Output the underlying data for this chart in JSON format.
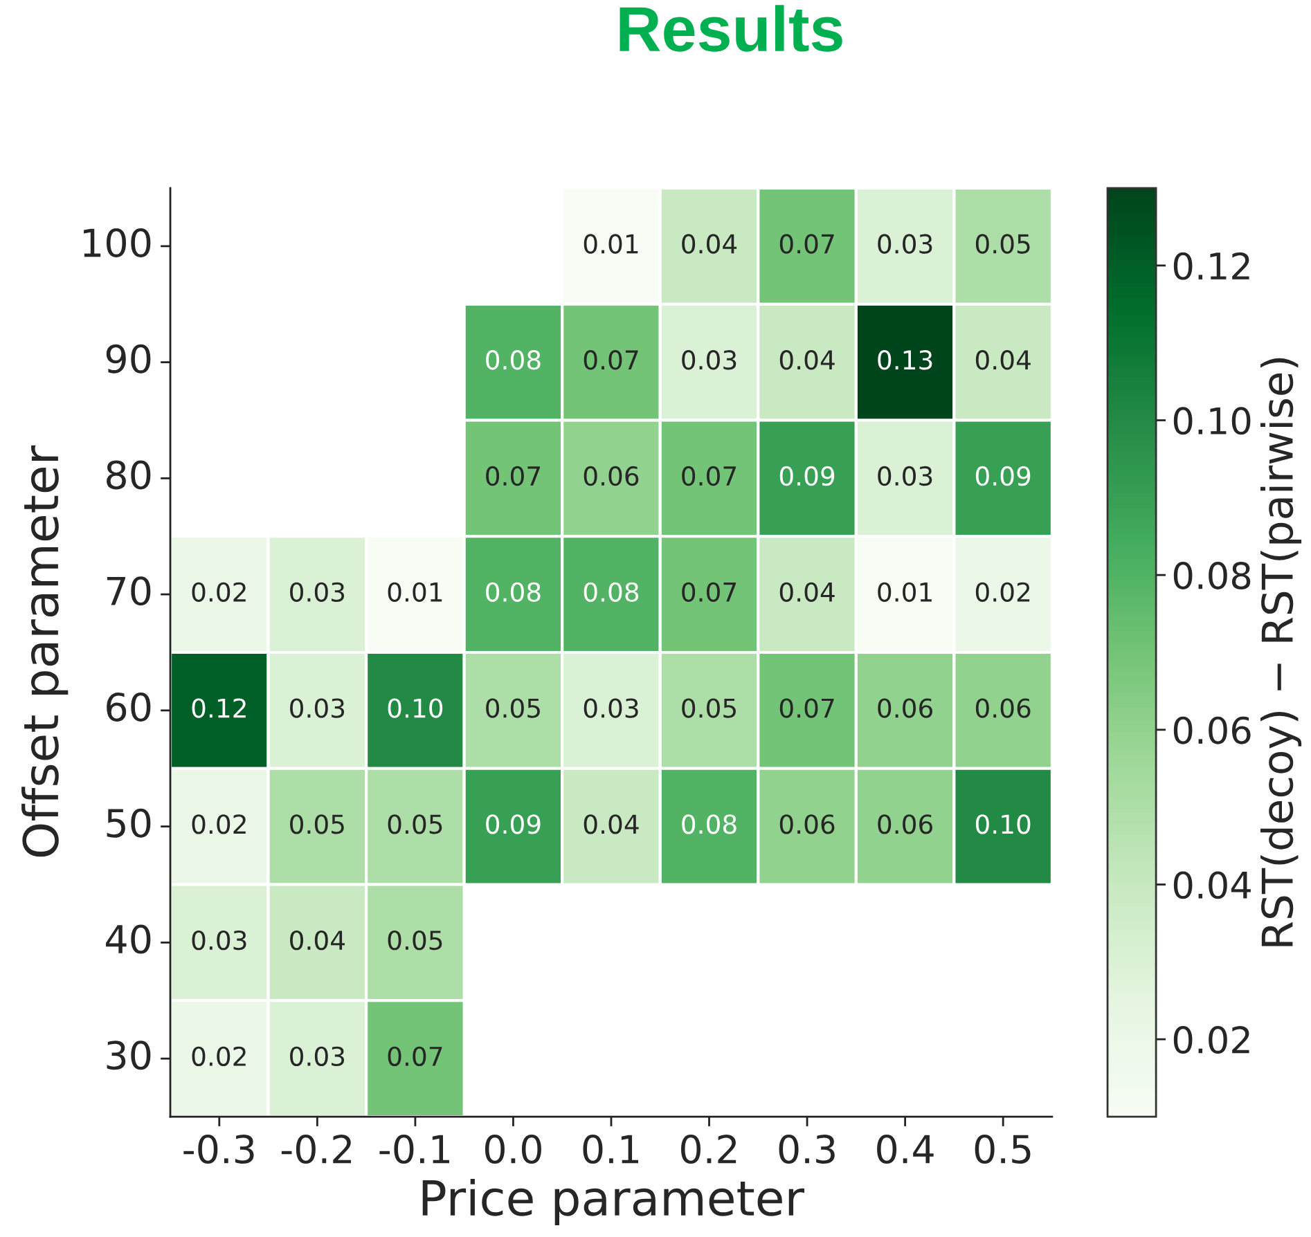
{
  "chart_data": {
    "type": "heatmap",
    "title": "Results",
    "xlabel": "Price parameter",
    "ylabel": "Offset parameter",
    "clabel": "RST(decoy) − RST(pairwise)",
    "categories": [
      "-0.3",
      "-0.2",
      "-0.1",
      "0.0",
      "0.1",
      "0.2",
      "0.3",
      "0.4",
      "0.5"
    ],
    "y_categories": [
      "100",
      "90",
      "80",
      "70",
      "60",
      "50",
      "40",
      "30"
    ],
    "cells": [
      [
        null,
        null,
        null,
        null,
        0.01,
        0.04,
        0.07,
        0.03,
        0.05
      ],
      [
        null,
        null,
        null,
        0.08,
        0.07,
        0.03,
        0.04,
        0.13,
        0.04
      ],
      [
        null,
        null,
        null,
        0.07,
        0.06,
        0.07,
        0.09,
        0.03,
        0.09
      ],
      [
        0.02,
        0.03,
        0.01,
        0.08,
        0.08,
        0.07,
        0.04,
        0.01,
        0.02
      ],
      [
        0.12,
        0.03,
        0.1,
        0.05,
        0.03,
        0.05,
        0.07,
        0.06,
        0.06
      ],
      [
        0.02,
        0.05,
        0.05,
        0.09,
        0.04,
        0.08,
        0.06,
        0.06,
        0.1
      ],
      [
        0.03,
        0.04,
        0.05,
        null,
        null,
        null,
        null,
        null,
        null
      ],
      [
        0.02,
        0.03,
        0.07,
        null,
        null,
        null,
        null,
        null,
        null
      ]
    ],
    "cell_labels": [
      [
        null,
        null,
        null,
        null,
        "0.01",
        "0.04",
        "0.07",
        "0.03",
        "0.05"
      ],
      [
        null,
        null,
        null,
        "0.08",
        "0.07",
        "0.03",
        "0.04",
        "0.13",
        "0.04"
      ],
      [
        null,
        null,
        null,
        "0.07",
        "0.06",
        "0.07",
        "0.09",
        "0.03",
        "0.09"
      ],
      [
        "0.02",
        "0.03",
        "0.01",
        "0.08",
        "0.08",
        "0.07",
        "0.04",
        "0.01",
        "0.02"
      ],
      [
        "0.12",
        "0.03",
        "0.10",
        "0.05",
        "0.03",
        "0.05",
        "0.07",
        "0.06",
        "0.06"
      ],
      [
        "0.02",
        "0.05",
        "0.05",
        "0.09",
        "0.04",
        "0.08",
        "0.06",
        "0.06",
        "0.10"
      ],
      [
        "0.03",
        "0.04",
        "0.05",
        null,
        null,
        null,
        null,
        null,
        null
      ],
      [
        "0.02",
        "0.03",
        "0.07",
        null,
        null,
        null,
        null,
        null,
        null
      ]
    ],
    "clim": [
      0.01,
      0.13
    ],
    "cticks": [
      0.02,
      0.04,
      0.06,
      0.08,
      {
        "value": 0.1,
        "label": "0.10"
      },
      0.12
    ]
  }
}
